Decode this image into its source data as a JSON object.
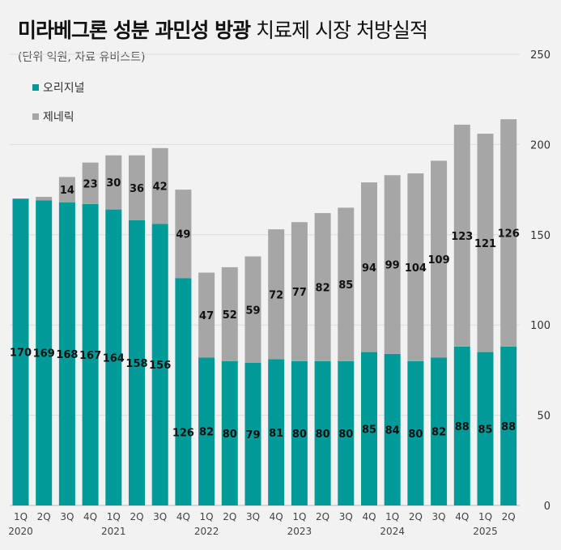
{
  "title_bold_1": "미라베그론 성분 ",
  "title_bold_2": "과민성 방광",
  "title_rest": " 치료제 시장 처방실적",
  "subtitle": "(단위 억원, 자료 유비스트)",
  "colors": {
    "original": "#009a99",
    "generic": "#a6a6a6",
    "grid": "#dcdcdc",
    "background": "#f2f2f2"
  },
  "chart_data": {
    "type": "bar",
    "stacked": true,
    "categories": [
      "1Q",
      "2Q",
      "3Q",
      "4Q",
      "1Q",
      "2Q",
      "3Q",
      "4Q",
      "1Q",
      "2Q",
      "3Q",
      "4Q",
      "1Q",
      "2Q",
      "3Q",
      "4Q",
      "1Q",
      "2Q",
      "3Q",
      "4Q",
      "1Q",
      "2Q"
    ],
    "year_labels": [
      {
        "label": "2020",
        "index": 0
      },
      {
        "label": "2021",
        "index": 4
      },
      {
        "label": "2022",
        "index": 8
      },
      {
        "label": "2023",
        "index": 12
      },
      {
        "label": "2024",
        "index": 16
      },
      {
        "label": "2025",
        "index": 20
      }
    ],
    "series": [
      {
        "name": "오리지널",
        "color": "#009a99",
        "values": [
          170,
          169,
          168,
          167,
          164,
          158,
          156,
          126,
          82,
          80,
          79,
          81,
          80,
          80,
          80,
          85,
          84,
          80,
          82,
          88,
          85,
          88
        ]
      },
      {
        "name": "제네릭",
        "color": "#a6a6a6",
        "values": [
          null,
          2,
          14,
          23,
          30,
          36,
          42,
          49,
          47,
          52,
          59,
          72,
          77,
          82,
          85,
          94,
          99,
          104,
          109,
          123,
          121,
          126
        ]
      }
    ],
    "y_axis": {
      "position": "right",
      "ticks": [
        0,
        50,
        100,
        150,
        200,
        250
      ],
      "ylim": [
        0,
        250
      ]
    },
    "legend_position": "top-left",
    "grid": true
  }
}
